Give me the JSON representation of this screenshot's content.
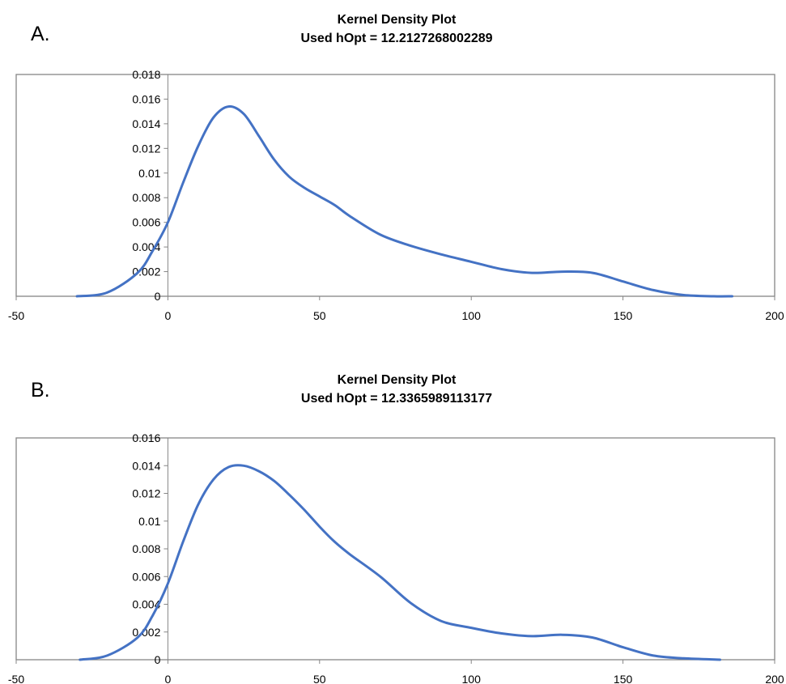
{
  "chart_data": [
    {
      "type": "line",
      "panel_label": "A.",
      "title": "Kernel Density Plot",
      "subtitle": "Used hOpt = 12.2127268002289",
      "xlabel": "",
      "ylabel": "",
      "xlim": [
        -50,
        200
      ],
      "ylim": [
        0,
        0.018
      ],
      "x_ticks": [
        -50,
        0,
        50,
        100,
        150,
        200
      ],
      "x_tick_labels": [
        "-50",
        "0",
        "50",
        "100",
        "150",
        "200"
      ],
      "y_ticks": [
        0,
        0.002,
        0.004,
        0.006,
        0.008,
        0.01,
        0.012,
        0.014,
        0.016,
        0.018
      ],
      "y_tick_labels": [
        "0",
        "0.002",
        "0.004",
        "0.006",
        "0.008",
        "0.01",
        "0.012",
        "0.014",
        "0.016",
        "0.018"
      ],
      "grid": false,
      "legend": "none",
      "color": "#4472C4",
      "series": [
        {
          "x": [
            -30,
            -20,
            -10,
            -5,
            0,
            5,
            10,
            15,
            20,
            25,
            30,
            35,
            40,
            45,
            50,
            55,
            60,
            70,
            80,
            90,
            100,
            110,
            120,
            130,
            140,
            150,
            160,
            170,
            180,
            186
          ],
          "values": [
            0.0,
            0.0003,
            0.0019,
            0.0037,
            0.006,
            0.0092,
            0.0122,
            0.0145,
            0.0154,
            0.0148,
            0.013,
            0.0111,
            0.0097,
            0.0088,
            0.0081,
            0.0074,
            0.0065,
            0.005,
            0.0041,
            0.0034,
            0.0028,
            0.0022,
            0.0019,
            0.002,
            0.0019,
            0.0012,
            0.0005,
            0.0001,
            0.0,
            0.0
          ]
        }
      ]
    },
    {
      "type": "line",
      "panel_label": "B.",
      "title": "Kernel Density Plot",
      "subtitle": "Used hOpt = 12.3365989113177",
      "xlabel": "",
      "ylabel": "",
      "xlim": [
        -50,
        200
      ],
      "ylim": [
        0,
        0.016
      ],
      "x_ticks": [
        -50,
        0,
        50,
        100,
        150,
        200
      ],
      "x_tick_labels": [
        "-50",
        "0",
        "50",
        "100",
        "150",
        "200"
      ],
      "y_ticks": [
        0,
        0.002,
        0.004,
        0.006,
        0.008,
        0.01,
        0.012,
        0.014,
        0.016
      ],
      "y_tick_labels": [
        "0",
        "0.002",
        "0.004",
        "0.006",
        "0.008",
        "0.01",
        "0.012",
        "0.014",
        "0.016"
      ],
      "grid": false,
      "legend": "none",
      "color": "#4472C4",
      "series": [
        {
          "x": [
            -29,
            -20,
            -10,
            -5,
            0,
            5,
            10,
            15,
            20,
            25,
            30,
            35,
            40,
            45,
            50,
            55,
            60,
            70,
            80,
            90,
            100,
            110,
            120,
            130,
            140,
            150,
            160,
            170,
            182
          ],
          "values": [
            0.0,
            0.0003,
            0.0016,
            0.0032,
            0.0055,
            0.0085,
            0.0112,
            0.013,
            0.0139,
            0.014,
            0.0136,
            0.0129,
            0.0119,
            0.0108,
            0.0096,
            0.0085,
            0.0076,
            0.006,
            0.0041,
            0.0028,
            0.0023,
            0.0019,
            0.0017,
            0.0018,
            0.0016,
            0.0009,
            0.0003,
            0.0001,
            0.0
          ]
        }
      ]
    }
  ]
}
